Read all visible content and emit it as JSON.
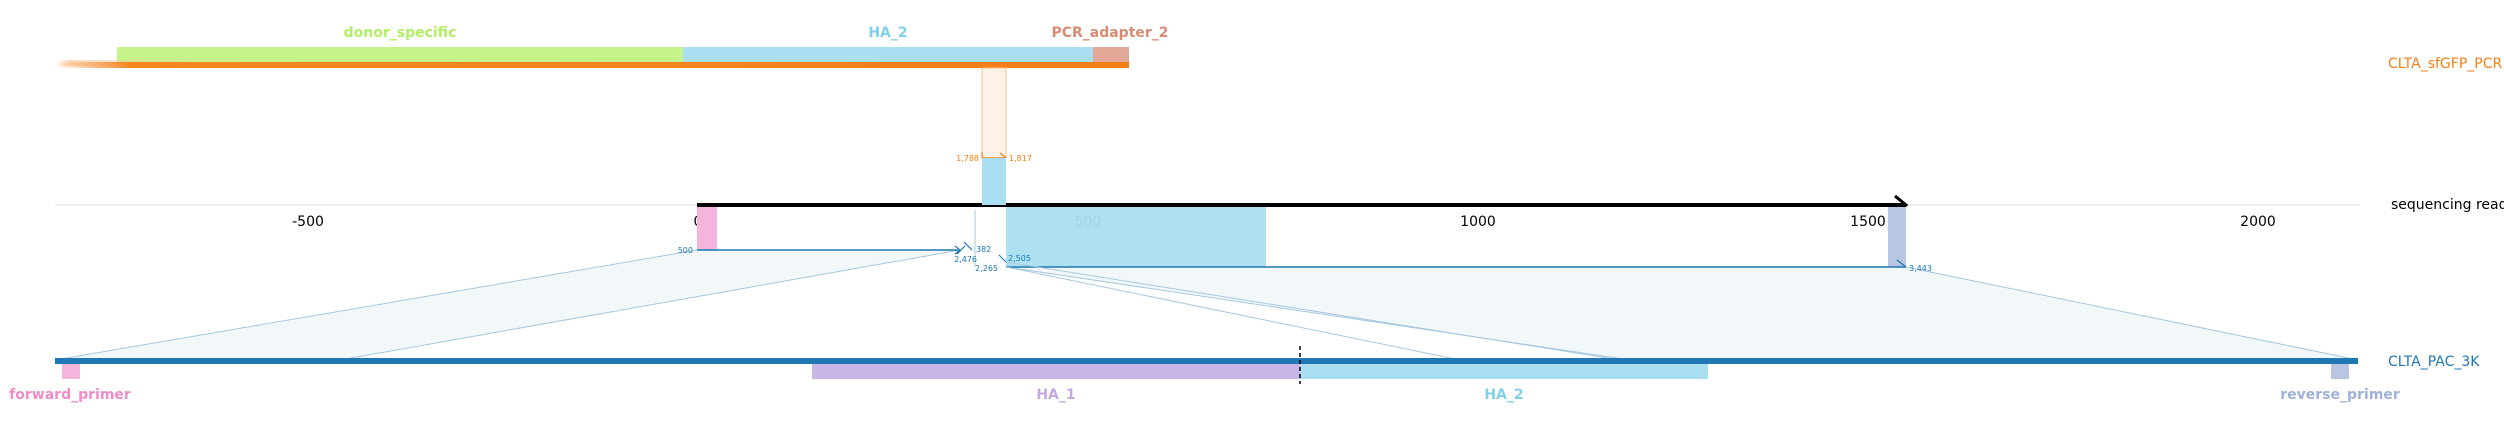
{
  "tracks": {
    "top": {
      "name": "CLTA_sfGFP_PCR",
      "color": "#f57f17"
    },
    "read": {
      "name": "sequencing read",
      "color": "#000000"
    },
    "bottom": {
      "name": "CLTA_PAC_3K",
      "color": "#1f77b4"
    }
  },
  "axis": {
    "ticks": [
      -500,
      0,
      500,
      1000,
      1500,
      2000
    ],
    "range": [
      -825,
      2130
    ]
  },
  "features_top": [
    {
      "name": "donor_specific",
      "color": "#c5f58a",
      "label_color": "#b2ef65"
    },
    {
      "name": "HA_2",
      "color": "#a9dff0",
      "label_color": "#7fd0ea"
    },
    {
      "name": "PCR_adapter_2",
      "color": "#e3a897",
      "label_color": "#d88c73"
    }
  ],
  "features_bottom": [
    {
      "name": "forward_primer",
      "color": "#f5b4dc",
      "label_color": "#f08cc8"
    },
    {
      "name": "HA_1",
      "color": "#c8b6e6",
      "label_color": "#c4a8e4"
    },
    {
      "name": "HA_2",
      "color": "#a9dff0",
      "label_color": "#7fd0ea"
    },
    {
      "name": "reverse_primer",
      "color": "#b9c6e2",
      "label_color": "#9fb1d9"
    }
  ],
  "coordinates": {
    "top_left": "1,788",
    "top_right": "1,817",
    "mid_500": "500",
    "mid_2476": "2,476",
    "mid_2505": "2,505",
    "mid_2265": "2,265",
    "mid_3443": "3,443",
    "mid_x_label": "382"
  }
}
